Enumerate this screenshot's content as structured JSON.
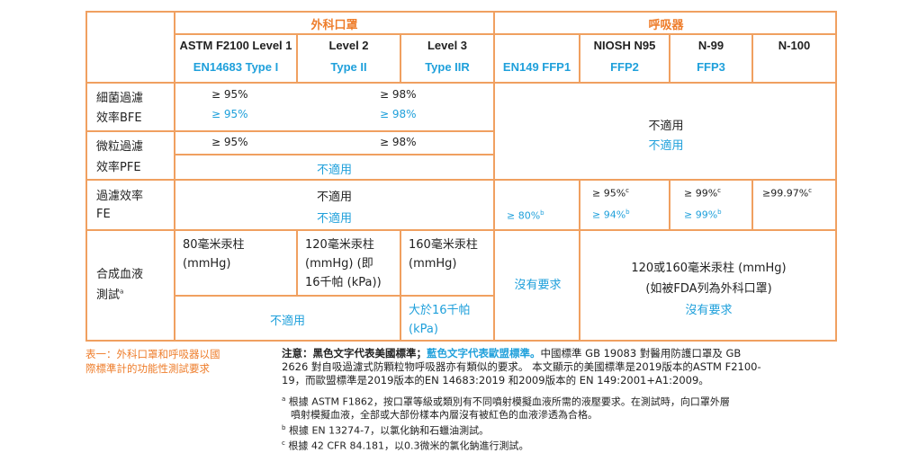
{
  "header": {
    "surgical": "外科口罩",
    "respirator": "呼吸器"
  },
  "columns": {
    "astm1": "ASTM F2100 Level 1",
    "en_type1": "EN14683 Type I",
    "level2": "Level 2",
    "type2": "Type II",
    "level3": "Level 3",
    "type2r": "Type IIR",
    "ffp1": "EN149 FFP1",
    "n95": "NIOSH N95",
    "ffp2": "FFP2",
    "n99": "N-99",
    "ffp3": "FFP3",
    "n100": "N-100"
  },
  "rows": {
    "bfe_label_1": "細菌過濾",
    "bfe_label_2": "效率BFE",
    "bfe_l1_us": "≥ 95%",
    "bfe_l1_eu": "≥ 95%",
    "bfe_l23_us": "≥ 98%",
    "bfe_l23_eu": "≥ 98%",
    "na_resp": "不適用",
    "na_resp_eu": "不適用",
    "pfe_label_1": "微粒過濾",
    "pfe_label_2": "效率PFE",
    "pfe_l1": "≥ 95%",
    "pfe_l23": "≥ 98%",
    "pfe_eu_na": "不適用",
    "fe_label_1": "過濾效率",
    "fe_label_2": "FE",
    "fe_surg_na": "不適用",
    "fe_surg_na_eu": "不適用",
    "fe_ffp1": "≥ 80%",
    "fe_n95": "≥ 95%",
    "fe_ffp2": "≥ 94%",
    "fe_n99": "≥ 99%",
    "fe_ffp3": "≥ 99%",
    "fe_n100": "≥99.97%",
    "fe_sup_b": "b",
    "fe_sup_c": "c",
    "blood_label_1": "合成血液",
    "blood_label_2": "測試",
    "blood_sup_a": "a",
    "blood_l1_1": "80毫米汞柱",
    "blood_l1_2": "(mmHg)",
    "blood_l2_1": "120毫米汞柱",
    "blood_l2_2": "(mmHg) (即",
    "blood_l2_3": "16千帕 (kPa))",
    "blood_l3_1": "160毫米汞柱",
    "blood_l3_2": "(mmHg)",
    "blood_na_eu": "不適用",
    "blood_l3_eu_1": "大於16千帕",
    "blood_l3_eu_2": "(kPa)",
    "blood_ffp1": "沒有要求",
    "blood_resp_1": "120或160毫米汞柱 (mmHg)",
    "blood_resp_2": "(如被FDA列為外科口罩)",
    "blood_resp_eu": "沒有要求"
  },
  "caption": {
    "line1": "表一：外科口罩和呼吸器以國",
    "line2": "際標準計的功能性測試要求"
  },
  "notes": {
    "lead_bold": "注意：黑色文字代表美國標準；",
    "lead_blue": "藍色文字代表歐盟標準。",
    "lead_rest": "中國標準 GB 19083 對醫用防護口罩及 GB",
    "line2": "2626 對自吸過濾式防顆粒物呼吸器亦有類似的要求。 本文顯示的美國標準是2019版本的ASTM F2100-",
    "line3": "19，而歐盟標準是2019版本的EN 14683:2019 和2009版本的 EN 149:2001+A1:2009。",
    "a_mark": "a",
    "a_1": "根據 ASTM F1862，按口罩等級或類別有不同噴射模擬血液所需的液壓要求。在測試時，向口罩外層",
    "a_2": "噴射模擬血液，全部或大部份樣本內層沒有被紅色的血液滲透為合格。",
    "b_mark": "b",
    "b_text": "根據 EN 13274-7，以氯化鈉和石蠟油測試。",
    "c_mark": "c",
    "c_text": "根據 42 CFR 84.181，以0.3微米的氯化鈉進行測試。"
  },
  "colors": {
    "orange": "#ee7d2b",
    "blue": "#1fa0db",
    "border": "#f0a060"
  }
}
